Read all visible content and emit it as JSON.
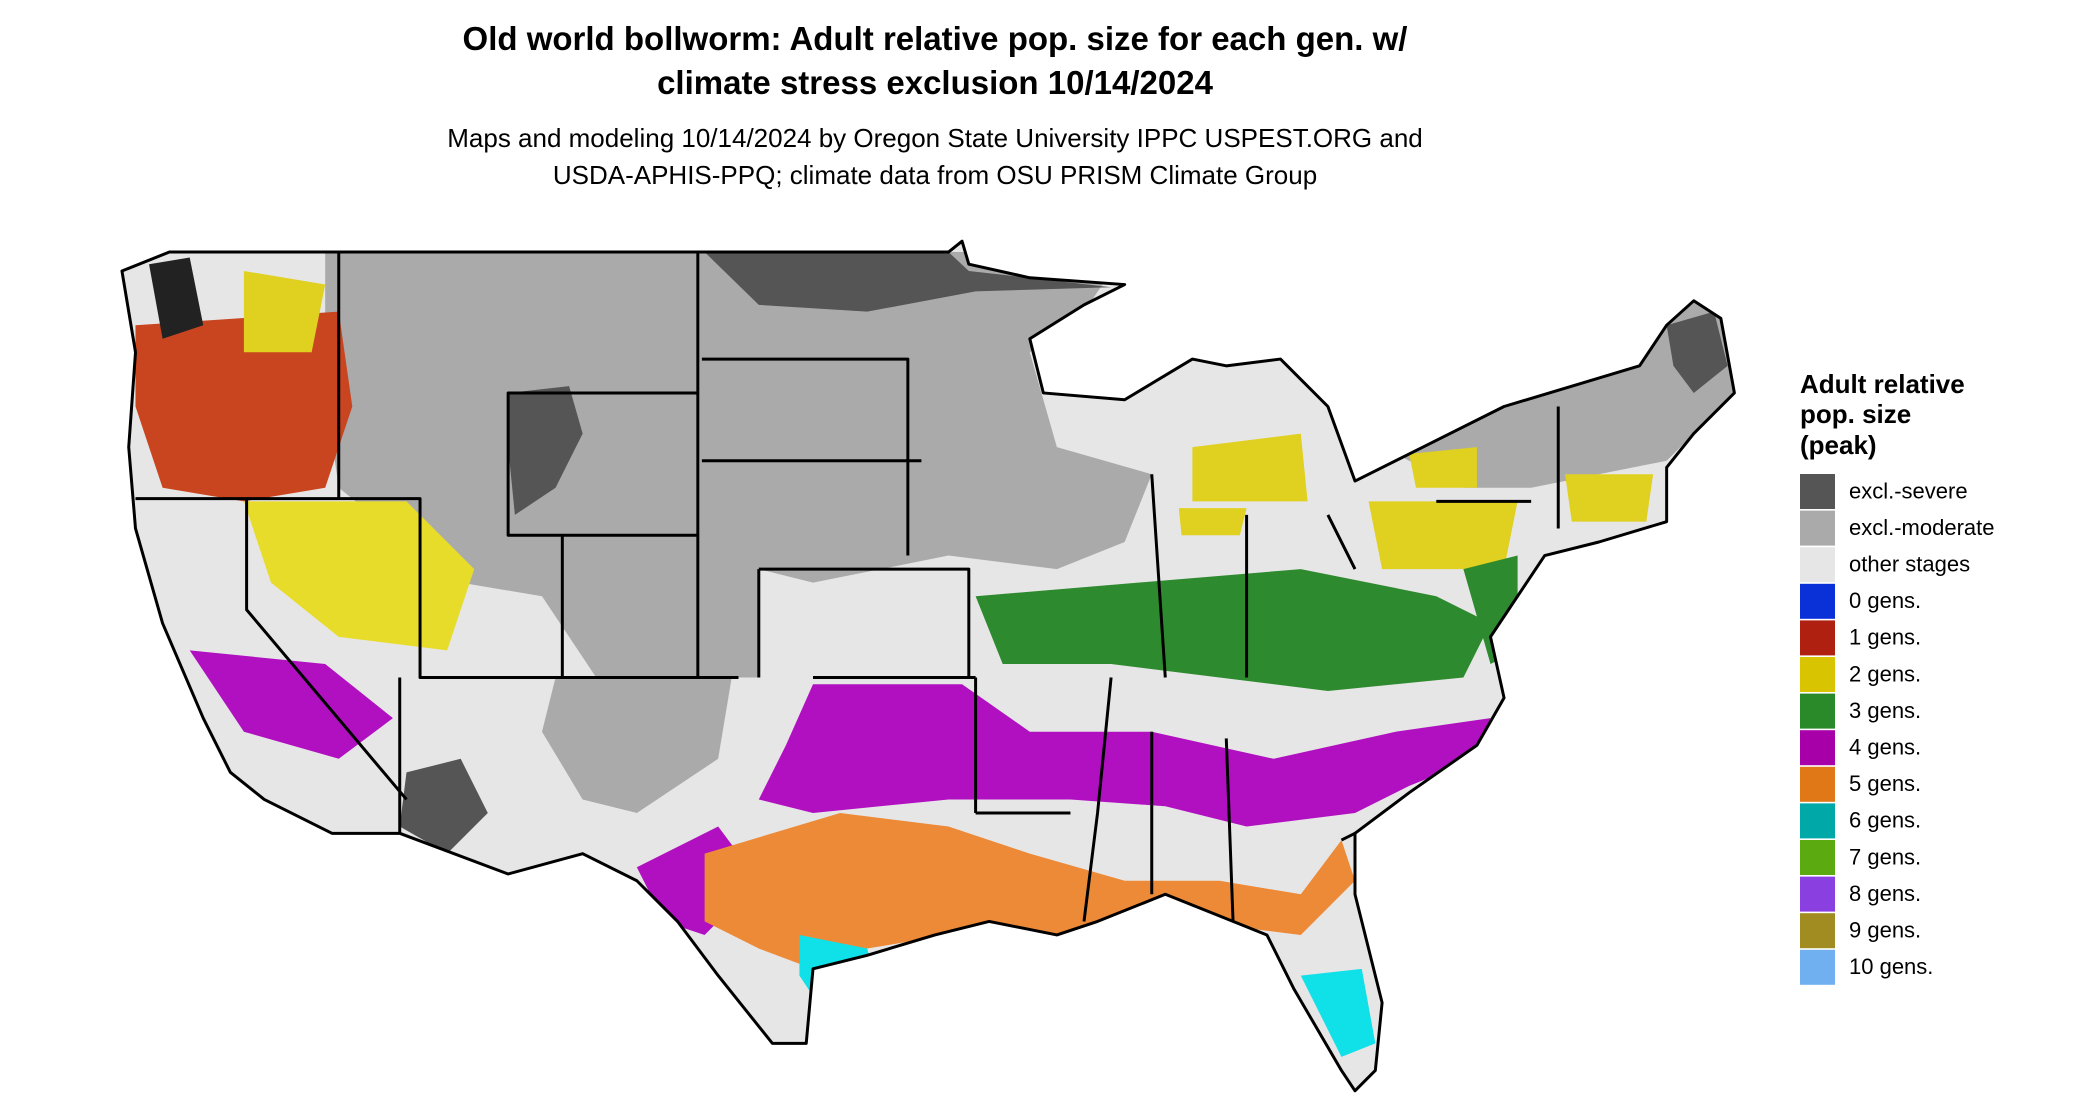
{
  "title": [
    "Old world bollworm: Adult relative pop. size for each gen. w/",
    "climate stress exclusion 10/14/2024"
  ],
  "subtitle": [
    "Maps and modeling 10/14/2024 by Oregon State University IPPC USPEST.ORG and",
    "USDA-APHIS-PPQ; climate data from OSU PRISM Climate Group"
  ],
  "legend": {
    "title": [
      "Adult relative",
      "pop. size",
      "(peak)"
    ],
    "items": [
      {
        "label": "excl.-severe",
        "color": "#555555"
      },
      {
        "label": "excl.-moderate",
        "color": "#aaaaaa"
      },
      {
        "label": "other stages",
        "color": "#e6e6e6"
      },
      {
        "label": "0 gens.",
        "color": "#0a30d8"
      },
      {
        "label": "1 gens.",
        "color": "#b02010"
      },
      {
        "label": "2 gens.",
        "color": "#d8c400"
      },
      {
        "label": "3 gens.",
        "color": "#2a8a2a"
      },
      {
        "label": "4 gens.",
        "color": "#a800a8"
      },
      {
        "label": "5 gens.",
        "color": "#e07818"
      },
      {
        "label": "6 gens.",
        "color": "#00a8a8"
      },
      {
        "label": "7 gens.",
        "color": "#5aaa10"
      },
      {
        "label": "8 gens.",
        "color": "#8a40e0"
      },
      {
        "label": "9 gens.",
        "color": "#a08c20"
      },
      {
        "label": "10 gens.",
        "color": "#70b0f0"
      }
    ]
  }
}
